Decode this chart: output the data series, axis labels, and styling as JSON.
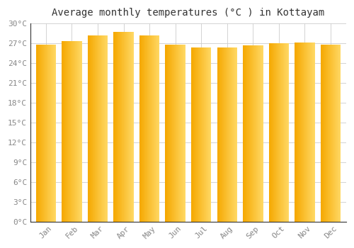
{
  "title": "Average monthly temperatures (°C ) in Kottayam",
  "months": [
    "Jan",
    "Feb",
    "Mar",
    "Apr",
    "May",
    "Jun",
    "Jul",
    "Aug",
    "Sep",
    "Oct",
    "Nov",
    "Dec"
  ],
  "values": [
    26.8,
    27.3,
    28.2,
    28.7,
    28.2,
    26.8,
    26.4,
    26.4,
    26.7,
    27.0,
    27.1,
    26.8
  ],
  "ylim": [
    0,
    30
  ],
  "yticks": [
    0,
    3,
    6,
    9,
    12,
    15,
    18,
    21,
    24,
    27,
    30
  ],
  "ytick_labels": [
    "0°C",
    "3°C",
    "6°C",
    "9°C",
    "12°C",
    "15°C",
    "18°C",
    "21°C",
    "24°C",
    "27°C",
    "30°C"
  ],
  "background_color": "#FFFFFF",
  "plot_bg_color": "#FFFFFF",
  "grid_color": "#CCCCCC",
  "title_fontsize": 10,
  "tick_fontsize": 8,
  "bar_color_left": "#F5A800",
  "bar_color_right": "#FFD966",
  "bar_width": 0.78,
  "title_color": "#333333",
  "tick_color": "#888888",
  "spine_color": "#333333"
}
